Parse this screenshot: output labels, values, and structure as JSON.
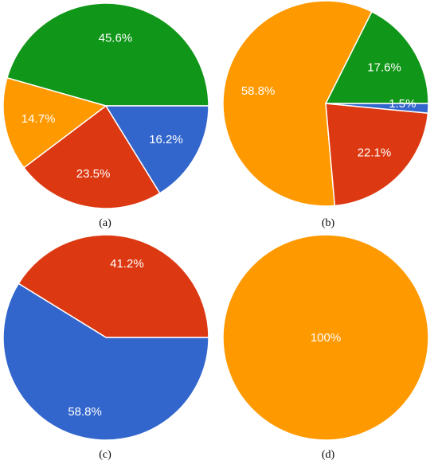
{
  "chart_data": [
    {
      "type": "pie",
      "caption": "(a)",
      "start_angle_deg": 0,
      "slices": [
        {
          "label": "45.6%",
          "value": 45.6,
          "color": "#109618"
        },
        {
          "label": "14.7%",
          "value": 14.7,
          "color": "#ff9900"
        },
        {
          "label": "23.5%",
          "value": 23.5,
          "color": "#dc3912"
        },
        {
          "label": "16.2%",
          "value": 16.2,
          "color": "#3366cc"
        }
      ]
    },
    {
      "type": "pie",
      "caption": "(b)",
      "start_angle_deg": 0,
      "slices": [
        {
          "label": "17.6%",
          "value": 17.6,
          "color": "#109618"
        },
        {
          "label": "58.8%",
          "value": 58.8,
          "color": "#ff9900"
        },
        {
          "label": "22.1%",
          "value": 22.1,
          "color": "#dc3912"
        },
        {
          "label": "1.5%",
          "value": 1.5,
          "color": "#3366cc"
        }
      ]
    },
    {
      "type": "pie",
      "caption": "(c)",
      "start_angle_deg": 0,
      "slices": [
        {
          "label": "41.2%",
          "value": 41.2,
          "color": "#dc3912"
        },
        {
          "label": "58.8%",
          "value": 58.8,
          "color": "#3366cc"
        }
      ]
    },
    {
      "type": "pie",
      "caption": "(d)",
      "start_angle_deg": 0,
      "slices": [
        {
          "label": "100%",
          "value": 100,
          "color": "#ff9900"
        }
      ]
    }
  ]
}
